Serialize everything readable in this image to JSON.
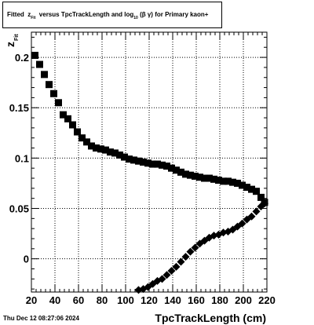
{
  "title": {
    "prefix": "Fitted",
    "z": "z",
    "z_sub": "Fit",
    "mid": "versus TpcTrackLength and log",
    "log_sub": "10",
    "beta_gamma": "(β  γ)",
    "suffix": "for Primary kaon+"
  },
  "timestamp": "Thu Dec 12 08:27:06 2024",
  "chart_data": {
    "type": "scatter",
    "xlabel": "TpcTrackLength (cm)",
    "ylabel": "z",
    "ylabel_sub": "Fit",
    "xlim": [
      20,
      220
    ],
    "ylim": [
      -0.033,
      0.225
    ],
    "grid": true,
    "xticks": [
      20,
      40,
      60,
      80,
      100,
      120,
      140,
      160,
      180,
      200,
      220
    ],
    "xtick_labels": [
      "20",
      "40",
      "60",
      "80",
      "100",
      "120",
      "140",
      "160",
      "180",
      "200",
      "220"
    ],
    "yticks": [
      0,
      0.05,
      0.1,
      0.15,
      0.2
    ],
    "ytick_labels": [
      "0",
      "0.05",
      "0.1",
      "0.15",
      "0.2"
    ],
    "series": [
      {
        "marker": "square",
        "color": "#000000",
        "x": [
          23,
          27,
          31,
          35,
          39,
          43,
          47,
          51,
          55,
          59,
          63,
          67,
          71,
          75,
          79,
          83,
          87,
          91,
          95,
          99,
          103,
          107,
          111,
          115,
          119,
          123,
          127,
          131,
          135,
          139,
          143,
          147,
          151,
          155,
          159,
          163,
          167,
          171,
          175,
          179,
          183,
          187,
          191,
          195,
          199,
          203,
          207,
          211,
          215,
          218
        ],
        "y": [
          0.202,
          0.193,
          0.183,
          0.173,
          0.164,
          0.155,
          0.143,
          0.139,
          0.133,
          0.126,
          0.12,
          0.116,
          0.112,
          0.11,
          0.109,
          0.108,
          0.106,
          0.105,
          0.103,
          0.101,
          0.099,
          0.098,
          0.097,
          0.096,
          0.095,
          0.094,
          0.094,
          0.093,
          0.092,
          0.09,
          0.088,
          0.086,
          0.084,
          0.083,
          0.082,
          0.081,
          0.08,
          0.08,
          0.079,
          0.078,
          0.077,
          0.077,
          0.076,
          0.075,
          0.073,
          0.071,
          0.069,
          0.067,
          0.061,
          0.056
        ]
      },
      {
        "marker": "diamond",
        "color": "#000000",
        "x": [
          111,
          115,
          119,
          123,
          127,
          131,
          135,
          139,
          143,
          147,
          151,
          155,
          159,
          163,
          167,
          171,
          175,
          179,
          183,
          187,
          191,
          195,
          199,
          203,
          207,
          211,
          215,
          218
        ],
        "y": [
          -0.031,
          -0.03,
          -0.028,
          -0.025,
          -0.022,
          -0.02,
          -0.016,
          -0.012,
          -0.008,
          -0.003,
          0.002,
          0.007,
          0.011,
          0.015,
          0.018,
          0.021,
          0.023,
          0.024,
          0.026,
          0.027,
          0.029,
          0.032,
          0.035,
          0.039,
          0.042,
          0.047,
          0.052,
          0.055
        ]
      }
    ]
  }
}
